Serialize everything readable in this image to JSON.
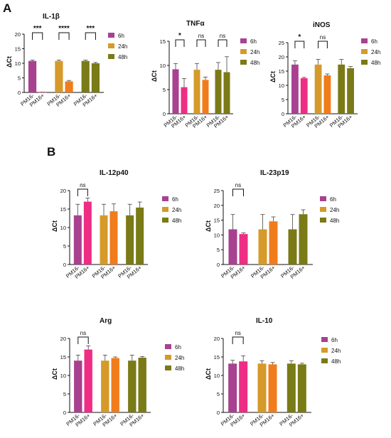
{
  "panel_labels": {
    "a": "A",
    "b": "B"
  },
  "colors": {
    "6h": "#a8418f",
    "24h": "#d69a2a",
    "48h": "#7a7a17",
    "pm16_plus_6h": "#ee2d84",
    "pm16_plus_24h": "#f07c1c"
  },
  "chart_data": [
    {
      "type": "bar",
      "title": "IL-1β",
      "ylabel": "ΔCt",
      "ylim": [
        0,
        20
      ],
      "yticks": [
        0,
        5,
        10,
        15,
        20
      ],
      "groups": [
        "6h",
        "24h",
        "48h"
      ],
      "categories": [
        "PM16-",
        "PM16+"
      ],
      "series": [
        {
          "name": "6h",
          "values": [
            10.8,
            -0.2
          ],
          "errors": [
            0.3,
            0.3
          ]
        },
        {
          "name": "24h",
          "values": [
            10.8,
            3.8
          ],
          "errors": [
            0.3,
            0.3
          ]
        },
        {
          "name": "48h",
          "values": [
            10.8,
            10.0
          ],
          "errors": [
            0.3,
            0.3
          ]
        }
      ],
      "significance": [
        "***",
        "****",
        "***"
      ],
      "legend": [
        "6h",
        "24h",
        "48h"
      ],
      "legend_position": "right"
    },
    {
      "type": "bar",
      "title": "TNFα",
      "ylabel": "ΔCt",
      "ylim": [
        0,
        15
      ],
      "yticks": [
        0,
        5,
        10,
        15
      ],
      "groups": [
        "6h",
        "24h",
        "48h"
      ],
      "categories": [
        "PM16-",
        "PM16+"
      ],
      "series": [
        {
          "name": "6h",
          "values": [
            9.2,
            5.5
          ],
          "errors": [
            1.2,
            1.8
          ]
        },
        {
          "name": "24h",
          "values": [
            9.1,
            7.0
          ],
          "errors": [
            1.3,
            0.6
          ]
        },
        {
          "name": "48h",
          "values": [
            9.1,
            8.6
          ],
          "errors": [
            1.5,
            3.2
          ]
        }
      ],
      "significance": [
        "*",
        "ns",
        "ns"
      ],
      "legend": [
        "6h",
        "24h",
        "48h"
      ],
      "legend_position": "right"
    },
    {
      "type": "bar",
      "title": "iNOS",
      "ylabel": "ΔCt",
      "ylim": [
        0,
        25
      ],
      "yticks": [
        0,
        5,
        10,
        15,
        20,
        25
      ],
      "groups": [
        "6h",
        "24h",
        "48h"
      ],
      "categories": [
        "PM16-",
        "PM16+"
      ],
      "series": [
        {
          "name": "6h",
          "values": [
            17.3,
            12.5
          ],
          "errors": [
            1.3,
            0.3
          ]
        },
        {
          "name": "24h",
          "values": [
            17.3,
            13.5
          ],
          "errors": [
            1.8,
            0.5
          ]
        },
        {
          "name": "48h",
          "values": [
            17.3,
            16.0
          ],
          "errors": [
            1.8,
            0.6
          ]
        }
      ],
      "significance": [
        "*",
        "ns",
        ""
      ],
      "legend": [
        "6h",
        "24h",
        "48h"
      ],
      "legend_position": "right"
    },
    {
      "type": "bar",
      "title": "IL-12p40",
      "ylabel": "ΔCt",
      "ylim": [
        0,
        20
      ],
      "yticks": [
        0,
        5,
        10,
        15,
        20
      ],
      "groups": [
        "6h",
        "24h",
        "48h"
      ],
      "categories": [
        "PM16-",
        "PM16+"
      ],
      "series": [
        {
          "name": "6h",
          "values": [
            13.3,
            17.0
          ],
          "errors": [
            3.0,
            1.0
          ]
        },
        {
          "name": "24h",
          "values": [
            13.3,
            14.4
          ],
          "errors": [
            3.0,
            2.0
          ]
        },
        {
          "name": "48h",
          "values": [
            13.3,
            15.4
          ],
          "errors": [
            3.0,
            1.5
          ]
        }
      ],
      "significance": [
        "ns",
        "",
        ""
      ],
      "legend": [
        "6h",
        "24h",
        "48h"
      ],
      "legend_position": "right"
    },
    {
      "type": "bar",
      "title": "IL-23p19",
      "ylabel": "ΔCt",
      "ylim": [
        0,
        25
      ],
      "yticks": [
        0,
        5,
        10,
        15,
        20,
        25
      ],
      "groups": [
        "6h",
        "24h",
        "48h"
      ],
      "categories": [
        "PM16-",
        "PM16+"
      ],
      "series": [
        {
          "name": "6h",
          "values": [
            11.9,
            10.3
          ],
          "errors": [
            5.0,
            0.4
          ]
        },
        {
          "name": "24h",
          "values": [
            11.9,
            14.6
          ],
          "errors": [
            5.0,
            1.5
          ]
        },
        {
          "name": "48h",
          "values": [
            11.9,
            17.0
          ],
          "errors": [
            5.0,
            1.5
          ]
        }
      ],
      "significance": [
        "ns",
        "",
        ""
      ],
      "legend": [
        "6h",
        "24h",
        "48h"
      ],
      "legend_position": "right"
    },
    {
      "type": "bar",
      "title": "Arg",
      "ylabel": "ΔCt",
      "ylim": [
        0,
        20
      ],
      "yticks": [
        0,
        5,
        10,
        15,
        20
      ],
      "groups": [
        "6h",
        "24h",
        "48h"
      ],
      "categories": [
        "PM16-",
        "PM16+"
      ],
      "series": [
        {
          "name": "6h",
          "values": [
            14.0,
            17.0
          ],
          "errors": [
            1.5,
            1.0
          ]
        },
        {
          "name": "24h",
          "values": [
            14.0,
            14.7
          ],
          "errors": [
            1.5,
            0.3
          ]
        },
        {
          "name": "48h",
          "values": [
            14.0,
            14.8
          ],
          "errors": [
            1.5,
            0.3
          ]
        }
      ],
      "significance": [
        "ns",
        "",
        ""
      ],
      "legend": [
        "6h",
        "24h",
        "48h"
      ],
      "legend_position": "right"
    },
    {
      "type": "bar",
      "title": "IL-10",
      "ylabel": "ΔCt",
      "ylim": [
        0,
        20
      ],
      "yticks": [
        0,
        5,
        10,
        15,
        20
      ],
      "groups": [
        "6h",
        "24h",
        "48h"
      ],
      "categories": [
        "PM16-",
        "PM16+"
      ],
      "series": [
        {
          "name": "6h",
          "values": [
            13.2,
            13.8
          ],
          "errors": [
            0.9,
            1.5
          ]
        },
        {
          "name": "24h",
          "values": [
            13.2,
            13.0
          ],
          "errors": [
            0.8,
            0.5
          ]
        },
        {
          "name": "48h",
          "values": [
            13.2,
            13.0
          ],
          "errors": [
            0.8,
            0.3
          ]
        }
      ],
      "significance": [
        "ns",
        "",
        ""
      ],
      "legend": [
        "6h",
        "24h",
        "48h"
      ],
      "legend_position": "right"
    }
  ]
}
